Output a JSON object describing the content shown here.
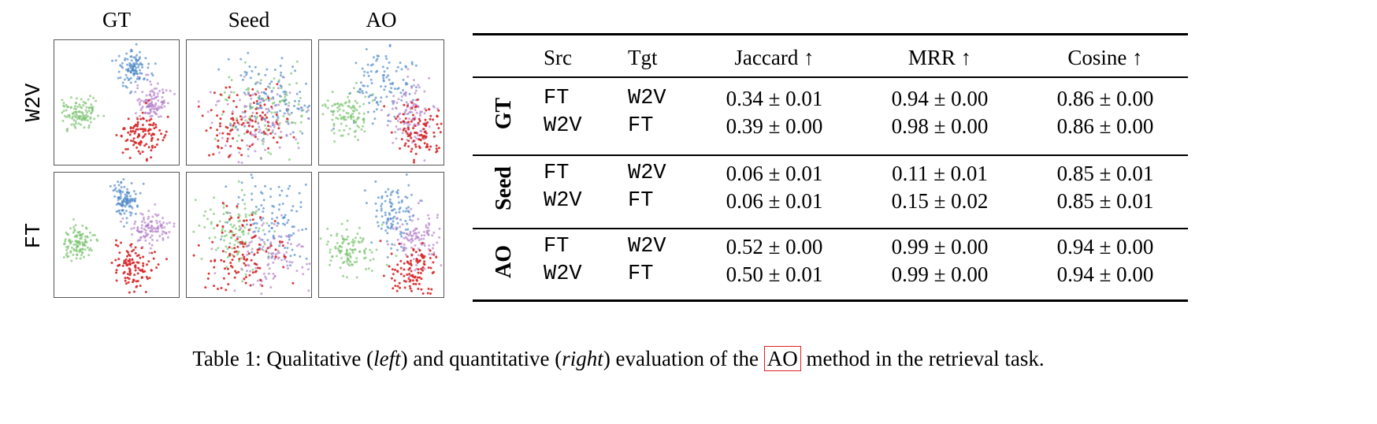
{
  "figure": {
    "column_titles": [
      "GT",
      "Seed",
      "AO"
    ],
    "row_labels": [
      "W2V",
      "FT"
    ],
    "cluster_colors": {
      "blue": "#4a86c5",
      "purple": "#b07cc6",
      "green": "#74c069",
      "red": "#d62728"
    }
  },
  "table": {
    "headers": {
      "src": "Src",
      "tgt": "Tgt",
      "jaccard": "Jaccard ↑",
      "mrr": "MRR ↑",
      "cosine": "Cosine ↑"
    },
    "groups": [
      {
        "label": "GT",
        "rows": [
          {
            "src": "FT",
            "tgt": "W2V",
            "jaccard": "0.34 ± 0.01",
            "mrr": "0.94 ± 0.00",
            "cosine": "0.86 ± 0.00"
          },
          {
            "src": "W2V",
            "tgt": "FT",
            "jaccard": "0.39 ± 0.00",
            "mrr": "0.98 ± 0.00",
            "cosine": "0.86 ± 0.00"
          }
        ]
      },
      {
        "label": "Seed",
        "rows": [
          {
            "src": "FT",
            "tgt": "W2V",
            "jaccard": "0.06 ± 0.01",
            "mrr": "0.11 ± 0.01",
            "cosine": "0.85 ± 0.01"
          },
          {
            "src": "W2V",
            "tgt": "FT",
            "jaccard": "0.06 ± 0.01",
            "mrr": "0.15 ± 0.02",
            "cosine": "0.85 ± 0.01"
          }
        ]
      },
      {
        "label": "AO",
        "rows": [
          {
            "src": "FT",
            "tgt": "W2V",
            "jaccard": "0.52 ± 0.00",
            "mrr": "0.99 ± 0.00",
            "cosine": "0.94 ± 0.00"
          },
          {
            "src": "W2V",
            "tgt": "FT",
            "jaccard": "0.50 ± 0.01",
            "mrr": "0.99 ± 0.00",
            "cosine": "0.94 ± 0.00"
          }
        ]
      }
    ]
  },
  "caption": {
    "prefix": "Table 1: Qualitative (",
    "left": "left",
    "mid": ") and quantitative (",
    "right": "right",
    "mid2": ") evaluation of the ",
    "method": "AO",
    "suffix": " method in the retrieval task."
  }
}
